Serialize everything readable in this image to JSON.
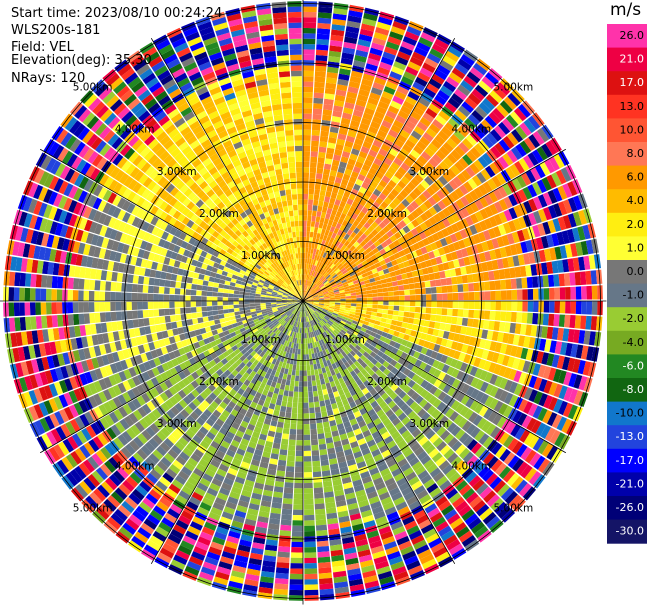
{
  "header": {
    "start_time": "Start time: 2023/08/10 00:24:24",
    "instrument": "WLS200s-181",
    "field": "Field: VEL",
    "elevation": "Elevation(deg): 35.30",
    "nrays": "NRays: 120"
  },
  "colorbar": {
    "unit": "m/s",
    "ticks": [
      "26.0",
      "21.0",
      "17.0",
      "13.0",
      "10.0",
      "8.0",
      "6.0",
      "4.0",
      "2.0",
      "1.0",
      "0.0",
      "-1.0",
      "-2.0",
      "-4.0",
      "-6.0",
      "-8.0",
      "-10.0",
      "-13.0",
      "-17.0",
      "-21.0",
      "-26.0",
      "-30.0"
    ],
    "colors": [
      "#ff33aa",
      "#ee0044",
      "#dd1111",
      "#ff3322",
      "#ff5533",
      "#ff7755",
      "#ff9900",
      "#ffbb00",
      "#ffee11",
      "#ffff33",
      "#777777",
      "#667788",
      "#99cc33",
      "#77aa22",
      "#228822",
      "#116611",
      "#1177cc",
      "#2244dd",
      "#0000ff",
      "#0000aa",
      "#000077",
      "#141466"
    ]
  },
  "chart_data": {
    "type": "heatmap",
    "projection": "polar PPI",
    "field": "VEL",
    "units": "m/s",
    "elevation_deg": 35.3,
    "n_rays": 120,
    "range_ring_labels": [
      "1.00km",
      "2.00km",
      "3.00km",
      "4.00km",
      "5.00km"
    ],
    "range_rings_km": [
      1,
      2,
      3,
      4,
      5
    ],
    "vmin": -30.0,
    "vmax": 26.0,
    "sectors": [
      {
        "azimuth_from": 300,
        "azimuth_to": 360,
        "range_km_to": 4,
        "value_ms": 2.0
      },
      {
        "azimuth_from": 0,
        "azimuth_to": 90,
        "range_km_to": 4,
        "value_ms": 5.0
      },
      {
        "azimuth_from": 90,
        "azimuth_to": 110,
        "range_km_to": 4,
        "value_ms": 2.0
      },
      {
        "azimuth_from": 110,
        "azimuth_to": 250,
        "range_km_to": 4,
        "value_ms": -2.0
      },
      {
        "azimuth_from": 250,
        "azimuth_to": 300,
        "range_km_to": 4,
        "value_ms": -0.5
      }
    ]
  }
}
